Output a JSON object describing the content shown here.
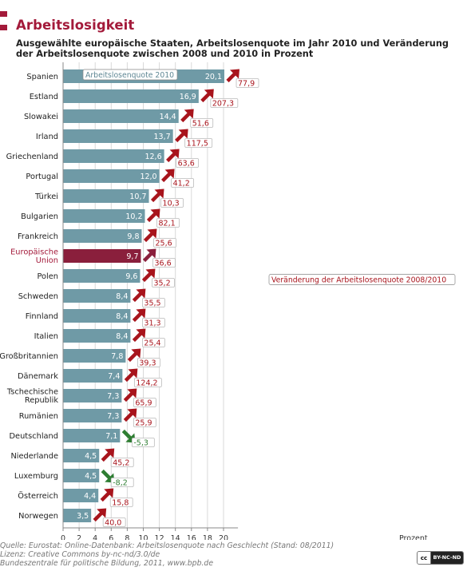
{
  "header": {
    "title": "Arbeitslosigkeit",
    "subtitle": "Ausgewählte europäische Staaten, Arbeitslosenquote im Jahr 2010 und Veränderung der Arbeitslosenquote zwischen 2008 und 2010 in Prozent"
  },
  "chart_data": {
    "type": "bar",
    "orientation": "horizontal",
    "categories": [
      "Spanien",
      "Estland",
      "Slowakei",
      "Irland",
      "Griechenland",
      "Portugal",
      "Türkei",
      "Bulgarien",
      "Frankreich",
      "Europäische Union",
      "Polen",
      "Schweden",
      "Finnland",
      "Italien",
      "Großbritannien",
      "Dänemark",
      "Tschechische Republik",
      "Rumänien",
      "Deutschland",
      "Niederlande",
      "Luxemburg",
      "Österreich",
      "Norwegen"
    ],
    "series": [
      {
        "name": "Arbeitslosenquote 2010",
        "values": [
          20.1,
          16.9,
          14.4,
          13.7,
          12.6,
          12.0,
          10.7,
          10.2,
          9.8,
          9.7,
          9.6,
          8.4,
          8.4,
          8.4,
          7.8,
          7.4,
          7.3,
          7.3,
          7.1,
          4.5,
          4.5,
          4.4,
          3.5
        ]
      },
      {
        "name": "Veränderung der Arbeitslosenquote 2008/2010",
        "values": [
          77.9,
          207.3,
          51.6,
          117.5,
          63.6,
          41.2,
          10.3,
          82.1,
          25.6,
          36.6,
          35.2,
          35.5,
          31.3,
          25.4,
          39.3,
          124.2,
          65.9,
          25.9,
          -5.3,
          45.2,
          -8.2,
          15.8,
          40.0
        ]
      }
    ],
    "value_labels": [
      "20,1",
      "16,9",
      "14,4",
      "13,7",
      "12,6",
      "12,0",
      "10,7",
      "10,2",
      "9,8",
      "9,7",
      "9,6",
      "8,4",
      "8,4",
      "8,4",
      "7,8",
      "7,4",
      "7,3",
      "7,3",
      "7,1",
      "4,5",
      "4,5",
      "4,4",
      "3,5"
    ],
    "change_labels": [
      "77,9",
      "207,3",
      "51,6",
      "117,5",
      "63,6",
      "41,2",
      "10,3",
      "82,1",
      "25,6",
      "36,6",
      "35,2",
      "35,5",
      "31,3",
      "25,4",
      "39,3",
      "124,2",
      "65,9",
      "25,9",
      "-5,3",
      "45,2",
      "-8,2",
      "15,8",
      "40,0"
    ],
    "category_labels": [
      [
        "Spanien"
      ],
      [
        "Estland"
      ],
      [
        "Slowakei"
      ],
      [
        "Irland"
      ],
      [
        "Griechenland"
      ],
      [
        "Portugal"
      ],
      [
        "Türkei"
      ],
      [
        "Bulgarien"
      ],
      [
        "Frankreich"
      ],
      [
        "Europäische",
        "Union"
      ],
      [
        "Polen"
      ],
      [
        "Schweden"
      ],
      [
        "Finnland"
      ],
      [
        "Italien"
      ],
      [
        "Großbritannien"
      ],
      [
        "Dänemark"
      ],
      [
        "Tschechische",
        "Republik"
      ],
      [
        "Rumänien"
      ],
      [
        "Deutschland"
      ],
      [
        "Niederlande"
      ],
      [
        "Luxemburg"
      ],
      [
        "Österreich"
      ],
      [
        "Norwegen"
      ]
    ],
    "highlight_category": "Europäische Union",
    "annotations": {
      "bar_series_label": "Arbeitslosenquote 2010",
      "change_series_label": "Veränderung der Arbeitslosenquote 2008/2010"
    },
    "xlabel": "Prozent",
    "xlim": [
      0,
      22
    ],
    "xticks": [
      0,
      2,
      4,
      6,
      8,
      10,
      12,
      14,
      16,
      18,
      20
    ],
    "grid": true,
    "colors": {
      "bar": "#6f9aa6",
      "highlight_bar": "#8a1f3c",
      "arrow_up": "#a8141c",
      "arrow_down": "#2e7d32",
      "highlight_label": "#a31a3a",
      "grid": "#d9d9d9"
    }
  },
  "footer": {
    "source": "Quelle: Eurostat: Online-Datenbank: Arbeitslosenquote nach Geschlecht (Stand: 08/2011)",
    "license": "Lizenz: Creative Commons  by-nc-nd/3.0/de",
    "publisher": "Bundeszentrale für politische Bildung, 2011, www.bpb.de",
    "badge_left": "cc",
    "badge_right": "BY-NC-ND"
  }
}
